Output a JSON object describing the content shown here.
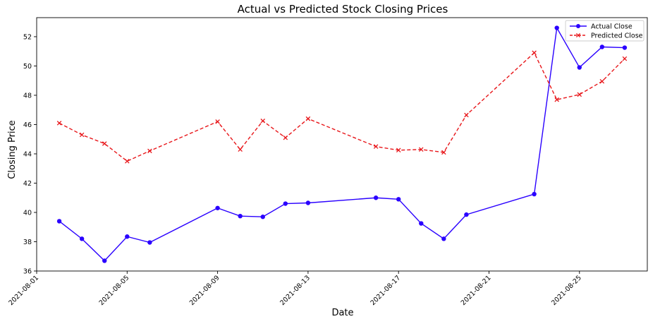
{
  "chart_data": {
    "type": "line",
    "title": "Actual vs Predicted Stock Closing Prices",
    "xlabel": "Date",
    "ylabel": "Closing Price",
    "xlim": [
      "2021-08-01",
      "2021-08-28"
    ],
    "ylim": [
      36,
      53.3
    ],
    "x_ticks": [
      "2021-08-01",
      "2021-08-05",
      "2021-08-09",
      "2021-08-13",
      "2021-08-17",
      "2021-08-21",
      "2021-08-25"
    ],
    "y_ticks": [
      36,
      38,
      40,
      42,
      44,
      46,
      48,
      50,
      52
    ],
    "grid": false,
    "legend_position": "top-right",
    "x": [
      "2021-08-02",
      "2021-08-03",
      "2021-08-04",
      "2021-08-05",
      "2021-08-06",
      "2021-08-09",
      "2021-08-10",
      "2021-08-11",
      "2021-08-12",
      "2021-08-13",
      "2021-08-16",
      "2021-08-17",
      "2021-08-18",
      "2021-08-19",
      "2021-08-20",
      "2021-08-23",
      "2021-08-24",
      "2021-08-25",
      "2021-08-26",
      "2021-08-27"
    ],
    "series": [
      {
        "name": "Actual Close",
        "color": "#2a00ff",
        "line_style": "solid",
        "marker": "circle",
        "values": [
          39.4,
          38.2,
          36.7,
          38.35,
          37.95,
          40.3,
          39.75,
          39.7,
          40.6,
          40.65,
          41.0,
          40.9,
          39.25,
          38.2,
          39.85,
          41.25,
          52.6,
          49.9,
          51.3,
          51.25
        ]
      },
      {
        "name": "Predicted Close",
        "color": "#e8161a",
        "line_style": "dashed",
        "marker": "x",
        "values": [
          46.1,
          45.3,
          44.7,
          43.5,
          44.2,
          46.2,
          44.3,
          46.25,
          45.1,
          46.4,
          44.5,
          44.25,
          44.3,
          44.1,
          46.65,
          50.9,
          47.7,
          48.05,
          48.95,
          50.5
        ]
      }
    ]
  }
}
